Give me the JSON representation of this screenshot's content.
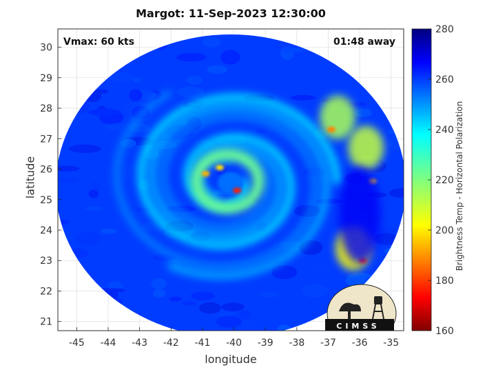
{
  "title": "Margot: 11-Sep-2023 12:30:00",
  "annotations": {
    "vmax": "Vmax: 60 kts",
    "time_away": "01:48 away"
  },
  "logo_text": "CIMSS",
  "chart_data": {
    "type": "heatmap",
    "title": "Margot: 11-Sep-2023 12:30:00",
    "xlabel": "longitude",
    "ylabel": "latitude",
    "xlim": [
      -45.6,
      -34.6
    ],
    "ylim": [
      20.7,
      30.6
    ],
    "xticks": [
      -45,
      -44,
      -43,
      -42,
      -41,
      -40,
      -39,
      -38,
      -37,
      -36,
      -35
    ],
    "yticks": [
      21,
      22,
      23,
      24,
      25,
      26,
      27,
      28,
      29,
      30
    ],
    "xtick_labels": [
      "-45",
      "-44",
      "-43",
      "-42",
      "-41",
      "-40",
      "-39",
      "-38",
      "-37",
      "-36",
      "-35"
    ],
    "ytick_labels": [
      "21",
      "22",
      "23",
      "24",
      "25",
      "26",
      "27",
      "28",
      "29",
      "30"
    ],
    "grid": true,
    "colorbar": {
      "label": "Brightness Temp - Horizontal Polarization",
      "range": [
        160,
        280
      ],
      "ticks": [
        160,
        180,
        200,
        220,
        240,
        260,
        280
      ],
      "tick_labels": [
        "160",
        "180",
        "200",
        "220",
        "240",
        "260",
        "280"
      ],
      "colormap": "jet"
    },
    "storm_center": {
      "lon": -40.2,
      "lat": 25.6
    },
    "swath_center": {
      "lon": -40.0,
      "lat": 25.8
    },
    "background_temp": 258,
    "features": [
      {
        "kind": "eyewall",
        "lon": -40.2,
        "lat": 25.6,
        "radius_deg": 0.9,
        "temp": 222
      },
      {
        "kind": "cold_spot",
        "lon": -40.9,
        "lat": 25.85,
        "temp": 196
      },
      {
        "kind": "cold_spot",
        "lon": -39.9,
        "lat": 25.3,
        "temp": 178
      },
      {
        "kind": "cold_spot",
        "lon": -40.45,
        "lat": 26.05,
        "temp": 202
      },
      {
        "kind": "band",
        "lon": -36.7,
        "lat": 27.7,
        "temp": 215
      },
      {
        "kind": "band",
        "lon": -35.8,
        "lat": 26.7,
        "temp": 212
      },
      {
        "kind": "band",
        "lon": -36.2,
        "lat": 23.4,
        "temp": 205
      },
      {
        "kind": "cold_spot",
        "lon": -36.9,
        "lat": 27.3,
        "temp": 190
      },
      {
        "kind": "cold_spot",
        "lon": -35.6,
        "lat": 25.6,
        "temp": 198
      },
      {
        "kind": "cold_spot",
        "lon": -35.9,
        "lat": 23.0,
        "temp": 182
      },
      {
        "kind": "warm_gap",
        "lon": -36.0,
        "lat": 24.5,
        "temp": 266
      }
    ]
  }
}
